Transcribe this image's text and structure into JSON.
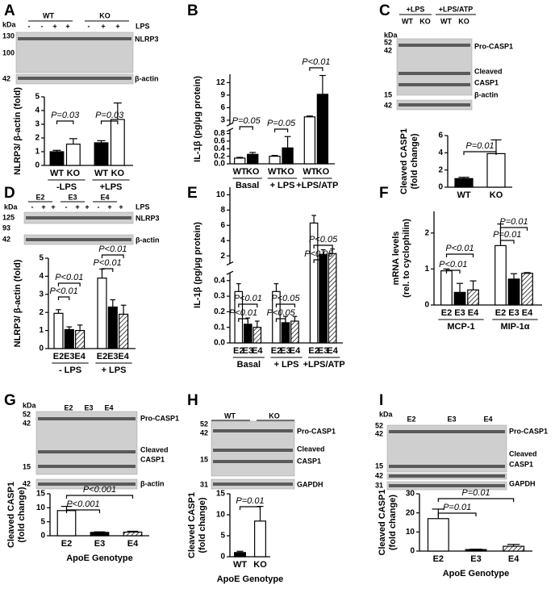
{
  "chart_data": [
    {
      "type": "bar",
      "panel": "A",
      "ylabel": "NLRP3/ β-actin (fold)",
      "categories": [
        "-LPS",
        "+LPS"
      ],
      "series": [
        {
          "name": "WT",
          "color": "#000000",
          "values": [
            1.0,
            1.65
          ],
          "errors": [
            0.1,
            0.15
          ]
        },
        {
          "name": "KO",
          "color": "#ffffff",
          "values": [
            1.55,
            3.35
          ],
          "errors": [
            0.4,
            1.2
          ]
        }
      ],
      "ylim": [
        0,
        5
      ],
      "yticks": [
        0,
        1,
        2,
        3,
        4,
        5
      ],
      "annotations": [
        "P=0.03",
        "P=0.03"
      ]
    },
    {
      "type": "bar",
      "panel": "B",
      "ylabel": "IL-1β (pg/μg protein)",
      "categories": [
        "Basal",
        "+ LPS",
        "+LPS/ATP"
      ],
      "series": [
        {
          "name": "WT",
          "color": "#ffffff",
          "values": [
            0.15,
            0.2,
            3.8
          ],
          "errors": [
            0.02,
            0.02,
            0.2
          ]
        },
        {
          "name": "KO",
          "color": "#000000",
          "values": [
            0.25,
            0.42,
            9.2
          ],
          "errors": [
            0.05,
            0.3,
            4.5
          ]
        }
      ],
      "ylim": [
        0,
        14
      ],
      "ybreak": [
        0.9,
        2
      ],
      "yticks": [
        {
          "value": 0,
          "label": "0.0"
        },
        0.2,
        0.4,
        0.6,
        0.8,
        3,
        6,
        9,
        12
      ],
      "annotations": [
        "P=0.05",
        "P=0.05",
        "P<0.01"
      ]
    },
    {
      "type": "bar",
      "panel": "C",
      "ylabel": [
        "Cleaved CASP1",
        "(fold change)"
      ],
      "categories": [
        "WT",
        "KO"
      ],
      "values": [
        1.0,
        3.9
      ],
      "errors": [
        0.15,
        1.6
      ],
      "colors": [
        "#000000",
        "#ffffff"
      ],
      "ylim": [
        0,
        6
      ],
      "yticks": [
        0,
        2,
        4,
        6
      ],
      "annotations": [
        "P=0.01"
      ]
    },
    {
      "type": "bar",
      "panel": "D",
      "ylabel": "NLRP3/ β-actin (fold)",
      "categories": [
        "- LPS",
        "+ LPS"
      ],
      "series": [
        {
          "name": "E2",
          "color": "#ffffff",
          "values": [
            1.95,
            3.9
          ],
          "errors": [
            0.2,
            0.5
          ]
        },
        {
          "name": "E3",
          "color": "#000000",
          "values": [
            1.05,
            2.3
          ],
          "errors": [
            0.15,
            0.4
          ]
        },
        {
          "name": "E4",
          "color": "hatch",
          "values": [
            1.0,
            1.9
          ],
          "errors": [
            0.3,
            0.5
          ]
        }
      ],
      "ylim": [
        0,
        5
      ],
      "yticks": [
        0,
        1,
        2,
        3,
        4,
        5
      ],
      "annotations": [
        "P<0.01",
        "P<0.01",
        "P<0.01",
        "P<0.01"
      ]
    },
    {
      "type": "bar",
      "panel": "E",
      "ylabel": "IL-1β (pg/μg protein)",
      "categories": [
        "Basal",
        "+ LPS",
        "+LPS/ATP"
      ],
      "series": [
        {
          "name": "E2",
          "color": "#ffffff",
          "values": [
            0.33,
            0.33,
            6.3
          ],
          "errors": [
            0.05,
            0.05,
            1.0
          ]
        },
        {
          "name": "E3",
          "color": "#000000",
          "values": [
            0.12,
            0.13,
            2.2
          ],
          "errors": [
            0.04,
            0.04,
            0.6
          ]
        },
        {
          "name": "E4",
          "color": "hatch",
          "values": [
            0.1,
            0.14,
            2.3
          ],
          "errors": [
            0.04,
            0.03,
            0.6
          ]
        }
      ],
      "ylim": [
        0,
        11
      ],
      "ybreak": [
        0.45,
        1
      ],
      "yticks": [
        {
          "value": 0,
          "label": "0.0"
        },
        0.1,
        0.2,
        0.3,
        0.4,
        2,
        4,
        6,
        8,
        10
      ],
      "annotations": [
        "P<0.01",
        "P<0.01",
        "P<0.05",
        "P<0.05",
        "P<0.05",
        "P<0.05"
      ]
    },
    {
      "type": "bar",
      "panel": "F",
      "ylabel": [
        "mRNA levels",
        "(rel. to cyclophilin)"
      ],
      "categories": [
        "MCP-1",
        "MIP-1α"
      ],
      "series": [
        {
          "name": "E2",
          "color": "#ffffff",
          "values": [
            0.95,
            1.65
          ],
          "errors": [
            0.05,
            0.6
          ]
        },
        {
          "name": "E3",
          "color": "#000000",
          "values": [
            0.35,
            0.72
          ],
          "errors": [
            0.25,
            0.15
          ]
        },
        {
          "name": "E4",
          "color": "hatch",
          "values": [
            0.42,
            0.88
          ],
          "errors": [
            0.25,
            0.02
          ]
        }
      ],
      "ylim": [
        0,
        2.6
      ],
      "yticks": [
        0,
        1,
        2
      ],
      "annotations": [
        "P<0.01",
        "P<0.01",
        "P=0.01",
        "P=0.01"
      ]
    },
    {
      "type": "bar",
      "panel": "G",
      "ylabel": [
        "Cleaved CASP1",
        "(fold change)"
      ],
      "xlabel": "ApoE Genotype",
      "categories": [
        "E2",
        "E3",
        "E4"
      ],
      "values": [
        9,
        1.2,
        1.3
      ],
      "errors": [
        1.5,
        0.2,
        0.3
      ],
      "colors": [
        "#ffffff",
        "#000000",
        "hatch"
      ],
      "ylim": [
        0,
        15
      ],
      "yticks": [
        0,
        5,
        10,
        15
      ],
      "annotations": [
        "P<0.001",
        "P<0.001"
      ]
    },
    {
      "type": "bar",
      "panel": "H",
      "ylabel": [
        "Cleaved CASP1",
        "(fold change)"
      ],
      "xlabel": "ApoE Genotype",
      "categories": [
        "WT",
        "KO"
      ],
      "values": [
        1,
        8.5
      ],
      "errors": [
        0.3,
        3.5
      ],
      "colors": [
        "#000000",
        "#ffffff"
      ],
      "ylim": [
        0,
        15
      ],
      "yticks": [
        0,
        5,
        10,
        15
      ],
      "annotations": [
        "P=0.01"
      ]
    },
    {
      "type": "bar",
      "panel": "I",
      "ylabel": [
        "Cleaved CASP1",
        "(fold change)"
      ],
      "xlabel": "ApoE Genotype",
      "categories": [
        "E2",
        "E3",
        "E4"
      ],
      "values": [
        17,
        0.8,
        2.5
      ],
      "errors": [
        5,
        0.2,
        1
      ],
      "colors": [
        "#ffffff",
        "#000000",
        "hatch"
      ],
      "ylim": [
        0,
        30
      ],
      "yticks": [
        0,
        10,
        20,
        30
      ],
      "annotations": [
        "P=0.01",
        "P=0.01"
      ]
    }
  ],
  "blots": [
    {
      "labels": [
        "kDa",
        "WT",
        "KO",
        "LPS",
        "-",
        "-",
        "+",
        "+",
        "-",
        "+",
        "+",
        "130",
        "100",
        "42",
        "NLRP3",
        "β-actin"
      ]
    },
    {
      "labels": [
        "+LPS",
        "+LPS/ATP",
        "WT",
        "KO",
        "WT",
        "KO",
        "kDa",
        "52",
        "42",
        "15",
        "42",
        "Pro-CASP1",
        "Cleaved",
        "CASP1",
        "β-actin"
      ]
    },
    {
      "labels": [
        "E2",
        "E3",
        "E4",
        "kDa",
        "-",
        "+",
        "+",
        "-",
        "+",
        "+",
        "-",
        "+",
        "+",
        "LPS",
        "125",
        "93",
        "42",
        "NLRP3",
        "β-actin"
      ]
    },
    {
      "labels": [
        "kDa",
        "E2",
        "E3",
        "E4",
        "Pro-CASP1",
        "52",
        "42",
        "Cleaved",
        "CASP1",
        "15",
        "42",
        "β-actin"
      ]
    },
    {
      "labels": [
        "WT",
        "KO",
        "52",
        "42",
        "15",
        "31",
        "Pro-CASP1",
        "Cleaved",
        "CASP1",
        "GAPDH"
      ]
    },
    {
      "labels": [
        "kDa",
        "E2",
        "E3",
        "E4",
        "52",
        "42",
        "15",
        "42",
        "31",
        "Pro-CASP1",
        "Cleaved",
        "CASP1",
        "GAPDH"
      ]
    }
  ]
}
